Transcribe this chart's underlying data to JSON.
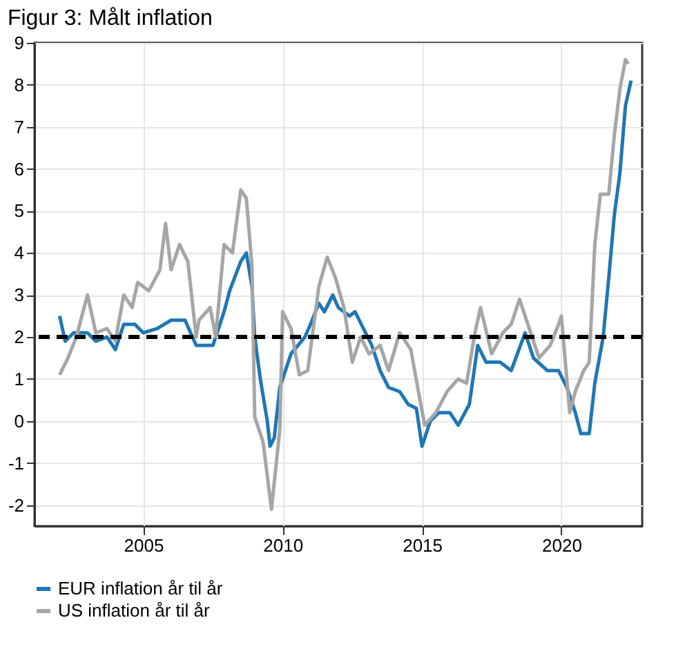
{
  "chart_data": {
    "type": "line",
    "title": "Figur 3: Målt inflation",
    "xlim": [
      2001.1,
      2022.9
    ],
    "xticks": [
      2005,
      2010,
      2015,
      2020
    ],
    "ylim": [
      -2.5,
      9
    ],
    "yticks": [
      -2,
      -1,
      0,
      1,
      2,
      3,
      4,
      5,
      6,
      7,
      8,
      9
    ],
    "grid": true,
    "legend": "bottom",
    "line_style": "solid",
    "marker": "none",
    "ref_lines": [
      {
        "axis": "y",
        "value": 2,
        "color": "#000000",
        "line_style": "dashed"
      }
    ],
    "series": [
      {
        "name": "EUR inflation år til år",
        "color": "#1f77b4",
        "x": [
          2002.0,
          2002.2,
          2002.5,
          2003.0,
          2003.3,
          2003.7,
          2004.0,
          2004.3,
          2004.7,
          2005.0,
          2005.5,
          2006.0,
          2006.5,
          2006.9,
          2007.5,
          2007.9,
          2008.1,
          2008.5,
          2008.7,
          2008.9,
          2009.0,
          2009.2,
          2009.45,
          2009.55,
          2009.7,
          2009.9,
          2010.0,
          2010.3,
          2010.8,
          2011.0,
          2011.3,
          2011.5,
          2011.8,
          2012.0,
          2012.4,
          2012.6,
          2012.9,
          2013.2,
          2013.5,
          2013.8,
          2014.2,
          2014.5,
          2014.8,
          2015.0,
          2015.3,
          2015.6,
          2016.0,
          2016.3,
          2016.7,
          2017.0,
          2017.3,
          2017.8,
          2018.2,
          2018.7,
          2019.0,
          2019.5,
          2019.9,
          2020.2,
          2020.5,
          2020.7,
          2021.0,
          2021.2,
          2021.5,
          2021.7,
          2021.9,
          2022.1,
          2022.3,
          2022.5
        ],
        "values": [
          2.5,
          1.9,
          2.1,
          2.1,
          1.9,
          2.0,
          1.7,
          2.3,
          2.3,
          2.1,
          2.2,
          2.4,
          2.4,
          1.8,
          1.8,
          2.6,
          3.1,
          3.8,
          4.0,
          3.2,
          2.0,
          1.0,
          0.0,
          -0.6,
          -0.4,
          0.8,
          1.0,
          1.6,
          2.0,
          2.3,
          2.8,
          2.6,
          3.0,
          2.7,
          2.5,
          2.6,
          2.2,
          1.8,
          1.2,
          0.8,
          0.7,
          0.4,
          0.3,
          -0.6,
          0.0,
          0.2,
          0.2,
          -0.1,
          0.4,
          1.8,
          1.4,
          1.4,
          1.2,
          2.1,
          1.5,
          1.2,
          1.2,
          0.8,
          0.2,
          -0.3,
          -0.3,
          0.9,
          2.0,
          3.4,
          4.9,
          5.9,
          7.5,
          8.1
        ]
      },
      {
        "name": "US inflation år til år",
        "color": "#a6a6a6",
        "x": [
          2002.0,
          2002.3,
          2002.6,
          2003.0,
          2003.3,
          2003.7,
          2004.0,
          2004.3,
          2004.6,
          2004.8,
          2005.2,
          2005.6,
          2005.8,
          2006.0,
          2006.3,
          2006.6,
          2006.9,
          2007.0,
          2007.4,
          2007.6,
          2007.9,
          2008.2,
          2008.5,
          2008.7,
          2008.9,
          2009.0,
          2009.3,
          2009.6,
          2009.9,
          2010.0,
          2010.3,
          2010.6,
          2010.9,
          2011.3,
          2011.6,
          2011.9,
          2012.2,
          2012.5,
          2012.8,
          2013.1,
          2013.5,
          2013.8,
          2014.2,
          2014.6,
          2014.9,
          2015.1,
          2015.5,
          2015.9,
          2016.3,
          2016.6,
          2016.9,
          2017.1,
          2017.5,
          2017.9,
          2018.2,
          2018.5,
          2018.9,
          2019.2,
          2019.6,
          2019.9,
          2020.0,
          2020.3,
          2020.5,
          2020.8,
          2021.0,
          2021.2,
          2021.4,
          2021.7,
          2021.9,
          2022.1,
          2022.3,
          2022.4
        ],
        "values": [
          1.1,
          1.5,
          2.0,
          3.0,
          2.1,
          2.2,
          1.9,
          3.0,
          2.7,
          3.3,
          3.1,
          3.6,
          4.7,
          3.6,
          4.2,
          3.8,
          2.0,
          2.4,
          2.7,
          2.0,
          4.2,
          4.0,
          5.5,
          5.3,
          3.7,
          0.1,
          -0.5,
          -2.1,
          -0.2,
          2.6,
          2.2,
          1.1,
          1.2,
          3.2,
          3.9,
          3.4,
          2.7,
          1.4,
          2.0,
          1.6,
          1.8,
          1.2,
          2.1,
          1.7,
          0.6,
          -0.1,
          0.2,
          0.7,
          1.0,
          0.9,
          2.1,
          2.7,
          1.6,
          2.1,
          2.3,
          2.9,
          2.1,
          1.5,
          1.8,
          2.3,
          2.5,
          0.2,
          0.7,
          1.2,
          1.4,
          4.2,
          5.4,
          5.4,
          6.8,
          7.9,
          8.6,
          8.5
        ]
      }
    ]
  }
}
